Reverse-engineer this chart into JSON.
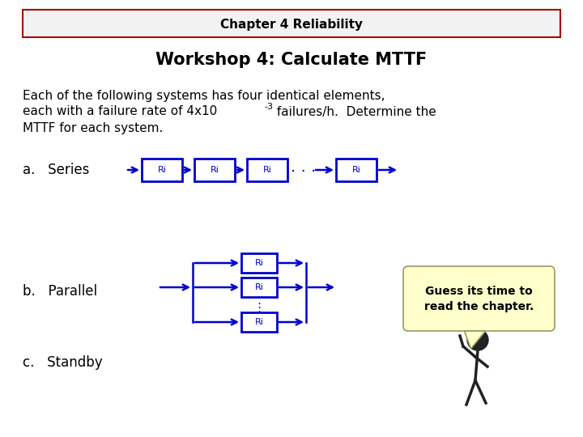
{
  "title_box_text": "Chapter 4 Reliability",
  "workshop_title": "Workshop 4: Calculate MTTF",
  "body_text_line1": "Each of the following systems has four identical elements,",
  "body_text_line2_pre": "each with a failure rate of 4x10",
  "body_text_exp": "-3",
  "body_text_line2_post": " failures/h.  Determine the",
  "body_text_line3": "MTTF for each system.",
  "label_a": "a.   Series",
  "label_b": "b.   Parallel",
  "label_c": "c.   Standby",
  "ri_label": "Ri",
  "box_color": "#0000cc",
  "arrow_color": "#0000cc",
  "bg_color": "#ffffff",
  "header_bg": "#f2f2f2",
  "header_border": "#aa0000",
  "bubble_bg": "#ffffcc",
  "bubble_border": "#999966",
  "bubble_text1": "Guess its time to",
  "bubble_text2": "read the chapter.",
  "title_fontsize": 11,
  "workshop_fontsize": 15,
  "body_fontsize": 11,
  "label_fontsize": 12
}
